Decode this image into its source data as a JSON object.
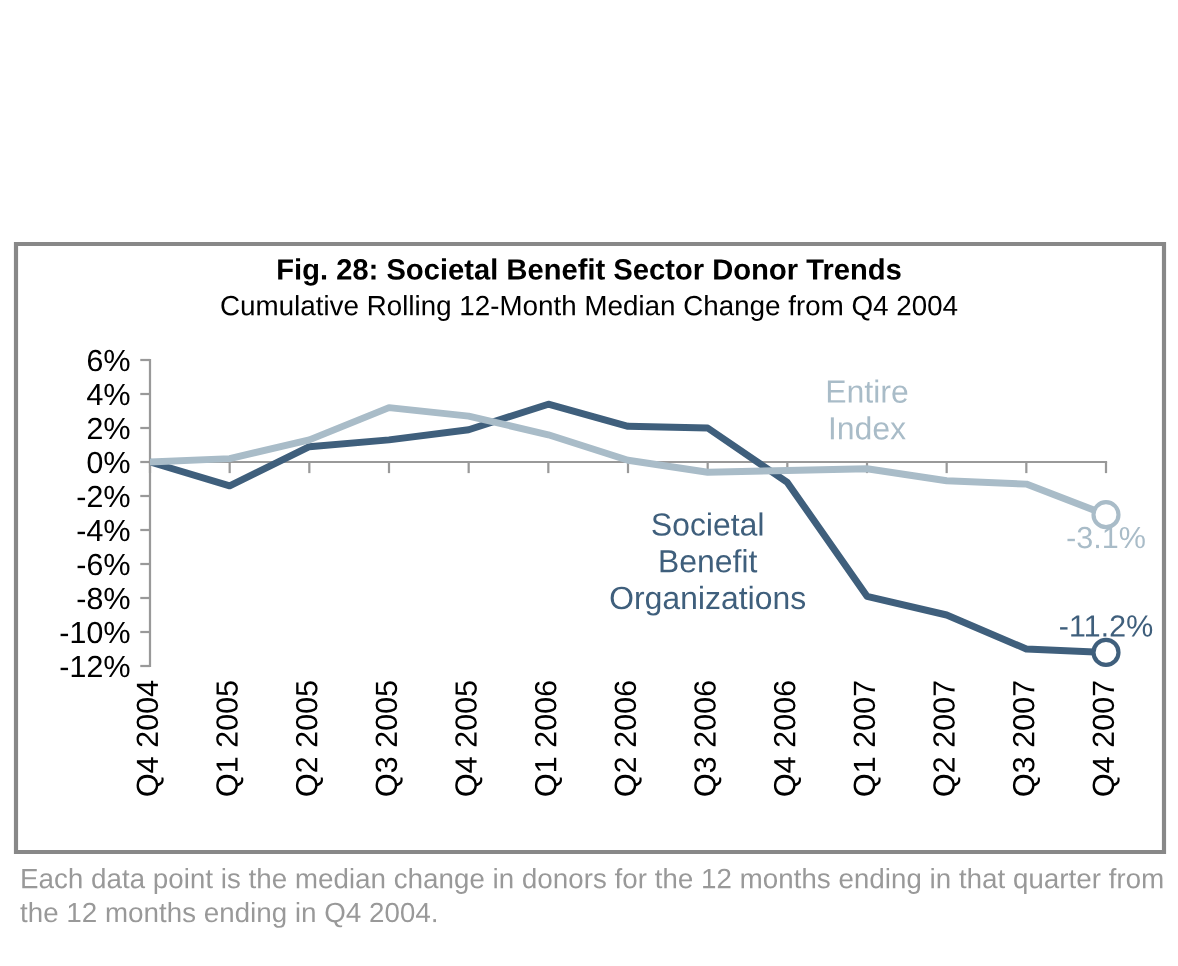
{
  "chart_data": {
    "type": "line",
    "title": "Fig. 28: Societal Benefit Sector Donor Trends",
    "subtitle": "Cumulative Rolling 12-Month Median Change from Q4 2004",
    "categories": [
      "Q4 2004",
      "Q1 2005",
      "Q2 2005",
      "Q3 2005",
      "Q4 2005",
      "Q1 2006",
      "Q2 2006",
      "Q3 2006",
      "Q4 2006",
      "Q1 2007",
      "Q2 2007",
      "Q3 2007",
      "Q4 2007"
    ],
    "series": [
      {
        "name": "Societal Benefit Organizations",
        "color": "#3f5f7c",
        "values": [
          0,
          -1.4,
          0.9,
          1.3,
          1.9,
          3.4,
          2.1,
          2.0,
          -1.2,
          -7.9,
          -9.0,
          -11.0,
          -11.2
        ],
        "value_labels": [
          null,
          null,
          null,
          null,
          null,
          null,
          null,
          null,
          null,
          null,
          null,
          null,
          "-11.2%"
        ]
      },
      {
        "name": "Entire Index",
        "color": "#a9bcc8",
        "values": [
          0,
          0.2,
          1.3,
          3.2,
          2.7,
          1.6,
          0.1,
          -0.6,
          -0.5,
          -0.4,
          -1.1,
          -1.3,
          -3.1
        ],
        "value_labels": [
          null,
          null,
          null,
          null,
          null,
          null,
          null,
          null,
          null,
          null,
          null,
          null,
          "-3.1%"
        ]
      }
    ],
    "ylim": [
      -12,
      6
    ],
    "yticks": [
      {
        "value": -12,
        "label": "-12%"
      },
      {
        "value": -10,
        "label": "-10%"
      },
      {
        "value": -8,
        "label": "-8%"
      },
      {
        "value": -6,
        "label": "-6%"
      },
      {
        "value": -4,
        "label": "-4%"
      },
      {
        "value": -2,
        "label": "-2%"
      },
      {
        "value": 0,
        "label": "0%"
      },
      {
        "value": 2,
        "label": "2%"
      },
      {
        "value": 4,
        "label": "4%"
      },
      {
        "value": 6,
        "label": "6%"
      }
    ],
    "annotations": [
      "Each data point is the median change in donors for the 12 months ending in that quarter from the 12 months ending in Q4 2004."
    ]
  }
}
